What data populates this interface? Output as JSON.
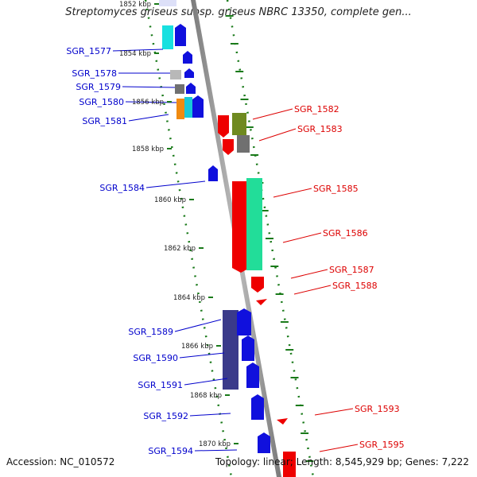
{
  "title": "Streptomyces griseus subsp. griseus NBRC 13350, complete gen...",
  "footer": {
    "accession": "Accession: NC_010572",
    "summary": "Topology: linear; Length: 8,545,929 bp; Genes: 7,222"
  },
  "colors": {
    "left_label": "#0000cc",
    "right_label": "#dd0000",
    "tick": "#1a7a1a",
    "backbone": "#9a9a9a"
  },
  "scale_labels": [
    "1852 kbp",
    "1854 kbp",
    "1856 kbp",
    "1858 kbp",
    "1860 kbp",
    "1862 kbp",
    "1864 kbp",
    "1866 kbp",
    "1868 kbp",
    "1870 kbp"
  ],
  "left_genes": [
    "SGR_1577",
    "SGR_1578",
    "SGR_1579",
    "SGR_1580",
    "SGR_1581",
    "SGR_1584",
    "SGR_1589",
    "SGR_1590",
    "SGR_1591",
    "SGR_1592",
    "SGR_1594"
  ],
  "right_genes": [
    "SGR_1582",
    "SGR_1583",
    "SGR_1585",
    "SGR_1586",
    "SGR_1587",
    "SGR_1588",
    "SGR_1593",
    "SGR_1595"
  ]
}
